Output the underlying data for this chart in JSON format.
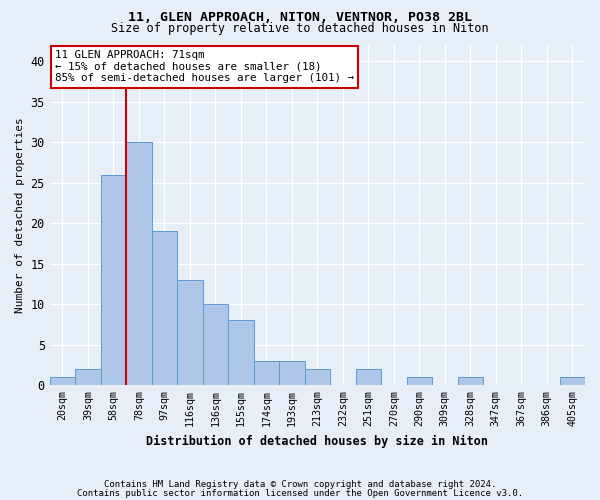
{
  "title1": "11, GLEN APPROACH, NITON, VENTNOR, PO38 2BL",
  "title2": "Size of property relative to detached houses in Niton",
  "xlabel": "Distribution of detached houses by size in Niton",
  "ylabel": "Number of detached properties",
  "footnote1": "Contains HM Land Registry data © Crown copyright and database right 2024.",
  "footnote2": "Contains public sector information licensed under the Open Government Licence v3.0.",
  "categories": [
    "20sqm",
    "39sqm",
    "58sqm",
    "78sqm",
    "97sqm",
    "116sqm",
    "136sqm",
    "155sqm",
    "174sqm",
    "193sqm",
    "213sqm",
    "232sqm",
    "251sqm",
    "270sqm",
    "290sqm",
    "309sqm",
    "328sqm",
    "347sqm",
    "367sqm",
    "386sqm",
    "405sqm"
  ],
  "values": [
    1,
    2,
    26,
    30,
    19,
    13,
    10,
    8,
    3,
    3,
    2,
    0,
    2,
    0,
    1,
    0,
    1,
    0,
    0,
    0,
    1
  ],
  "bar_color": "#aec6e8",
  "bar_edge_color": "#5b9bd5",
  "background_color": "#e8eef8",
  "grid_color": "#ffffff",
  "property_line_x": 2.5,
  "annotation_line1": "11 GLEN APPROACH: 71sqm",
  "annotation_line2": "← 15% of detached houses are smaller (18)",
  "annotation_line3": "85% of semi-detached houses are larger (101) →",
  "annotation_box_facecolor": "#ffffff",
  "annotation_box_edgecolor": "#cc0000",
  "red_line_color": "#cc0000",
  "ylim": [
    0,
    42
  ],
  "yticks": [
    0,
    5,
    10,
    15,
    20,
    25,
    30,
    35,
    40
  ]
}
